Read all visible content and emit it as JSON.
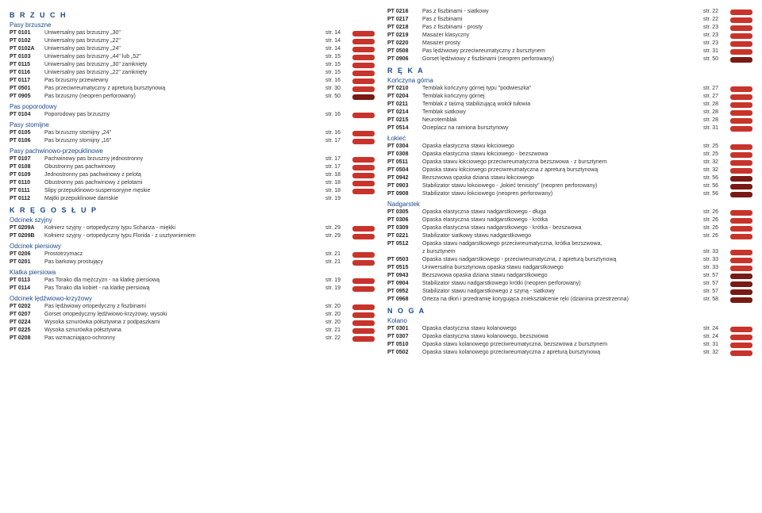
{
  "tag_colors": {
    "a": "#c8342b",
    "b": "#7a1a14"
  },
  "left": [
    {
      "type": "cat",
      "text": "B R Z U C H"
    },
    {
      "type": "sub",
      "text": "Pasy brzuszne"
    },
    {
      "type": "row",
      "code": "PT 0101",
      "name": "Uniwersalny pas brzuszny „30\"",
      "page": "str. 14",
      "tag": "a"
    },
    {
      "type": "row",
      "code": "PT 0102",
      "name": "Uniwersalny pas brzuszny „22\"",
      "page": "str. 14",
      "tag": "a"
    },
    {
      "type": "row",
      "code": "PT 0102A",
      "name": "Uniwersalny pas brzuszny „24\"",
      "page": "str. 14",
      "tag": "a"
    },
    {
      "type": "row",
      "code": "PT 0103",
      "name": "Uniwersalny pas brzuszny „44\" lub „52\"",
      "page": "str. 15",
      "tag": "a"
    },
    {
      "type": "row",
      "code": "PT 0115",
      "name": "Uniwersalny pas brzuszny „30\" zamknięty",
      "page": "str. 15",
      "tag": "a"
    },
    {
      "type": "row",
      "code": "PT 0116",
      "name": "Uniwersalny pas brzuszny „22\" zamknięty",
      "page": "str. 15",
      "tag": "a"
    },
    {
      "type": "row",
      "code": "PT 0117",
      "name": "Pas brzuszny przewiewny",
      "page": "str. 16",
      "tag": "a"
    },
    {
      "type": "row",
      "code": "PT 0501",
      "name": "Pas przeciwreumatyczny z apreturą bursztynową",
      "page": "str. 30",
      "tag": "a"
    },
    {
      "type": "row",
      "code": "PT 0905",
      "name": "Pas brzuszny (neopren perforowany)",
      "page": "str. 50",
      "tag": "b"
    },
    {
      "type": "sub",
      "text": "Pas poporodowy"
    },
    {
      "type": "row",
      "code": "PT 0104",
      "name": "Poporodowy pas brzuszny",
      "page": "str. 16",
      "tag": "a"
    },
    {
      "type": "sub",
      "text": "Pasy stomijne"
    },
    {
      "type": "row",
      "code": "PT 0105",
      "name": "Pas brzuszny stomijny „24\"",
      "page": "str. 16",
      "tag": "a"
    },
    {
      "type": "row",
      "code": "PT 0106",
      "name": "Pas brzuszny stomijny „16\"",
      "page": "str. 17",
      "tag": "a"
    },
    {
      "type": "sub",
      "text": "Pasy pachwinowo-przepuklinowe"
    },
    {
      "type": "row",
      "code": "PT 0107",
      "name": "Pachwinowy pas brzuszny jednostronny",
      "page": "str. 17",
      "tag": "a"
    },
    {
      "type": "row",
      "code": "PT 0108",
      "name": "Obustronny pas pachwinowy",
      "page": "str. 17",
      "tag": "a"
    },
    {
      "type": "row",
      "code": "PT 0109",
      "name": "Jednostronny pas pachwinowy z pelotą",
      "page": "str. 18",
      "tag": "a"
    },
    {
      "type": "row",
      "code": "PT 0110",
      "name": "Obustronny pas pachwinowy z pelotami",
      "page": "str. 18",
      "tag": "a"
    },
    {
      "type": "row",
      "code": "PT 0111",
      "name": "Slipy przepuklinowo-suspensoryjne męskie",
      "page": "str. 18",
      "tag": "a"
    },
    {
      "type": "row",
      "code": "PT 0112",
      "name": "Majtki przepuklinowe damskie",
      "page": "str. 19",
      "tag": "none"
    },
    {
      "type": "cat",
      "text": "K R Ę G O S Ł U P"
    },
    {
      "type": "sub",
      "text": "Odcinek szyjny"
    },
    {
      "type": "row",
      "code": "PT 0209A",
      "name": "Kołnierz szyjny - ortopedyczny typu Schanza - miękki",
      "page": "str. 29",
      "tag": "a"
    },
    {
      "type": "row",
      "code": "PT 0209B",
      "name": "Kołnierz szyjny - ortopedyczny typu Florida - z usztywnieniem",
      "page": "str. 29",
      "tag": "a"
    },
    {
      "type": "sub",
      "text": "Odcinek piersiowy"
    },
    {
      "type": "row",
      "code": "PT 0206",
      "name": "Prostotrzymacz",
      "page": "str. 21",
      "tag": "a"
    },
    {
      "type": "row",
      "code": "PT 0201",
      "name": "Pas barkowy prostujący",
      "page": "str. 21",
      "tag": "a"
    },
    {
      "type": "sub",
      "text": "Klatka piersiowa"
    },
    {
      "type": "row",
      "code": "PT 0113",
      "name": "Pas Torako dla mężczyzn - na klatkę piersiową",
      "page": "str. 19",
      "tag": "a"
    },
    {
      "type": "row",
      "code": "PT 0114",
      "name": "Pas Torako dla kobiet - na klatkę piersiową",
      "page": "str. 19",
      "tag": "a"
    },
    {
      "type": "sub",
      "text": "Odcinek lędźwiowo-krzyżowy"
    },
    {
      "type": "row",
      "code": "PT 0202",
      "name": "Pas lędźwiowy ortopedyczny z fiszbinami",
      "page": "str. 20",
      "tag": "a"
    },
    {
      "type": "row",
      "code": "PT 0207",
      "name": "Gorset ortopedyczny lędźwiowo-krzyżowy, wysoki",
      "page": "str. 20",
      "tag": "a"
    },
    {
      "type": "row",
      "code": "PT 0224",
      "name": "Wysoka sznurówka półsztywna z podpaszkami",
      "page": "str. 20",
      "tag": "a"
    },
    {
      "type": "row",
      "code": "PT 0225",
      "name": "Wysoka sznurówka półsztywna",
      "page": "str. 21",
      "tag": "a"
    },
    {
      "type": "row",
      "code": "PT 0208",
      "name": "Pas wzmacniająco-ochronny",
      "page": "str. 22",
      "tag": "a"
    }
  ],
  "right": [
    {
      "type": "row",
      "code": "PT 0216",
      "name": "Pas z fiszbinami - siatkowy",
      "page": "str. 22",
      "tag": "a"
    },
    {
      "type": "row",
      "code": "PT 0217",
      "name": "Pas z fiszbinami",
      "page": "str. 22",
      "tag": "a"
    },
    {
      "type": "row",
      "code": "PT 0218",
      "name": "Pas z fiszbinami - prosty",
      "page": "str. 23",
      "tag": "a"
    },
    {
      "type": "row",
      "code": "PT 0219",
      "name": "Masażer klasyczny",
      "page": "str. 23",
      "tag": "a"
    },
    {
      "type": "row",
      "code": "PT 0220",
      "name": "Masażer prosty",
      "page": "str. 23",
      "tag": "a"
    },
    {
      "type": "row",
      "code": "PT 0508",
      "name": "Pas lędźwiowy przeciwreumatyczny z bursztynem",
      "page": "str. 31",
      "tag": "a"
    },
    {
      "type": "row",
      "code": "PT 0906",
      "name": "Gorset lędźwiowy z fiszbinami  (neopren perforowany)",
      "page": "str. 50",
      "tag": "b"
    },
    {
      "type": "cat",
      "text": "R Ę K A"
    },
    {
      "type": "sub",
      "text": "Kończyna górna"
    },
    {
      "type": "row",
      "code": "PT 0210",
      "name": "Temblak kończyny górnej typu \"podwieszka\"",
      "page": "str. 27",
      "tag": "a"
    },
    {
      "type": "row",
      "code": "PT 0204",
      "name": "Temblak kończyny górnej",
      "page": "str. 27",
      "tag": "a"
    },
    {
      "type": "row",
      "code": "PT 0211",
      "name": "Temblak z taśmą stabilizującą wokół tułowia",
      "page": "str. 28",
      "tag": "a"
    },
    {
      "type": "row",
      "code": "PT 0214",
      "name": "Temblak siatkowy",
      "page": "str. 28",
      "tag": "a"
    },
    {
      "type": "row",
      "code": "PT 0215",
      "name": "Neurotemblak",
      "page": "str. 28",
      "tag": "a"
    },
    {
      "type": "row",
      "code": "PT 0514",
      "name": "Ocieplacz na ramiona bursztynowy",
      "page": "str. 31",
      "tag": "a"
    },
    {
      "type": "sub",
      "text": "Łokieć"
    },
    {
      "type": "row",
      "code": "PT 0304",
      "name": "Opaska elastyczna stawu łokciowego",
      "page": "str. 25",
      "tag": "a"
    },
    {
      "type": "row",
      "code": "PT 0308",
      "name": "Opaska elastyczna stawu  łokciowego - bezszwowa",
      "page": "str. 25",
      "tag": "a"
    },
    {
      "type": "row",
      "code": "PT 0511",
      "name": "Opaska stawu łokciowego przeciwreumatyczna bezszwowa - z bursztynem",
      "page": "str. 32",
      "tag": "a"
    },
    {
      "type": "row",
      "code": "PT 0504",
      "name": "Opaska stawu łokciowego przeciwreumatyczna z apreturą bursztynową",
      "page": "str. 32",
      "tag": "a"
    },
    {
      "type": "row",
      "code": "PT 0942",
      "name": "Bezszwowa opaska dziana stawu łokciowego",
      "page": "str. 56",
      "tag": "b"
    },
    {
      "type": "row",
      "code": "PT 0903",
      "name": "Stabilizator stawu łokciowego - „łokieć tenisisty\" (neopren perforowany)",
      "page": "str. 56",
      "tag": "b"
    },
    {
      "type": "row",
      "code": "PT 0908",
      "name": "Stabilizator stawu łokciowego (neopren perforowany)",
      "page": "str. 56",
      "tag": "b"
    },
    {
      "type": "sub",
      "text": "Nadgarstek"
    },
    {
      "type": "row",
      "code": "PT 0305",
      "name": "Opaska elastyczna stawu nadgarstkowego - długa",
      "page": "str. 26",
      "tag": "a"
    },
    {
      "type": "row",
      "code": "PT 0306",
      "name": "Opaska elastyczna stawu nadgarstkowego - krótka",
      "page": "str. 26",
      "tag": "a"
    },
    {
      "type": "row",
      "code": "PT 0309",
      "name": "Opaska elastyczna stawu  nadgarstkowego - krótka - bezszwowa",
      "page": "str. 26",
      "tag": "a"
    },
    {
      "type": "row",
      "code": "PT 0221",
      "name": "Stabilizator siatkowy stawu nadgarstkowego",
      "page": "str. 26",
      "tag": "a"
    },
    {
      "type": "row",
      "code": "PT 0512",
      "name": "Opaska stawu nadgarstkowego przeciwreumatyczna, krótka bezszwowa,",
      "page": "",
      "tag": "none"
    },
    {
      "type": "row",
      "code": "",
      "name": "z bursztynem",
      "page": "str. 33",
      "tag": "a"
    },
    {
      "type": "row",
      "code": "PT 0503",
      "name": "Opaska stawu nadgarstkowego - przeciwreumatyczna, z apreturą bursztynową",
      "page": "str. 33",
      "tag": "a"
    },
    {
      "type": "row",
      "code": "PT 0515",
      "name": "Uniwersalna bursztynowa opaska stawu nadgarstkowego",
      "page": "str. 33",
      "tag": "a"
    },
    {
      "type": "row",
      "code": "PT 0943",
      "name": "Bezszwowa opaska dziana stawu nadgarstkowego",
      "page": "str. 57",
      "tag": "b"
    },
    {
      "type": "row",
      "code": "PT 0904",
      "name": "Stabilizator stawu nadgarstkowego krótki (neopren perforowany)",
      "page": "str. 57",
      "tag": "b"
    },
    {
      "type": "row",
      "code": "PT 0952",
      "name": "Stabilizator stawu nadgarstkowego z szyną - siatkowy",
      "page": "str. 57",
      "tag": "b"
    },
    {
      "type": "row",
      "code": "PT 0968",
      "name": "Orteza na dłoń i przedramię korygująca zniekształcenie ręki (dzianina przestrzenna)",
      "page": "str. 58",
      "tag": "b"
    },
    {
      "type": "cat",
      "text": "N O G A"
    },
    {
      "type": "sub",
      "text": "Kolano"
    },
    {
      "type": "row",
      "code": "PT 0301",
      "name": "Opaska elastyczna stawu kolanowego",
      "page": "str. 24",
      "tag": "a"
    },
    {
      "type": "row",
      "code": "PT 0307",
      "name": "Opaska elastyczna stawu  kolanowego, bezszwowa",
      "page": "str. 24",
      "tag": "a"
    },
    {
      "type": "row",
      "code": "PT 0510",
      "name": "Opaska stawu kolanowego przeciwreumatyczna, bezszwowa z bursztynem",
      "page": "str. 31",
      "tag": "a"
    },
    {
      "type": "row",
      "code": "PT 0502",
      "name": "Opaska stawu kolanowego przeciwreumatyczna z apreturą bursztynową",
      "page": "str. 32",
      "tag": "a"
    }
  ]
}
